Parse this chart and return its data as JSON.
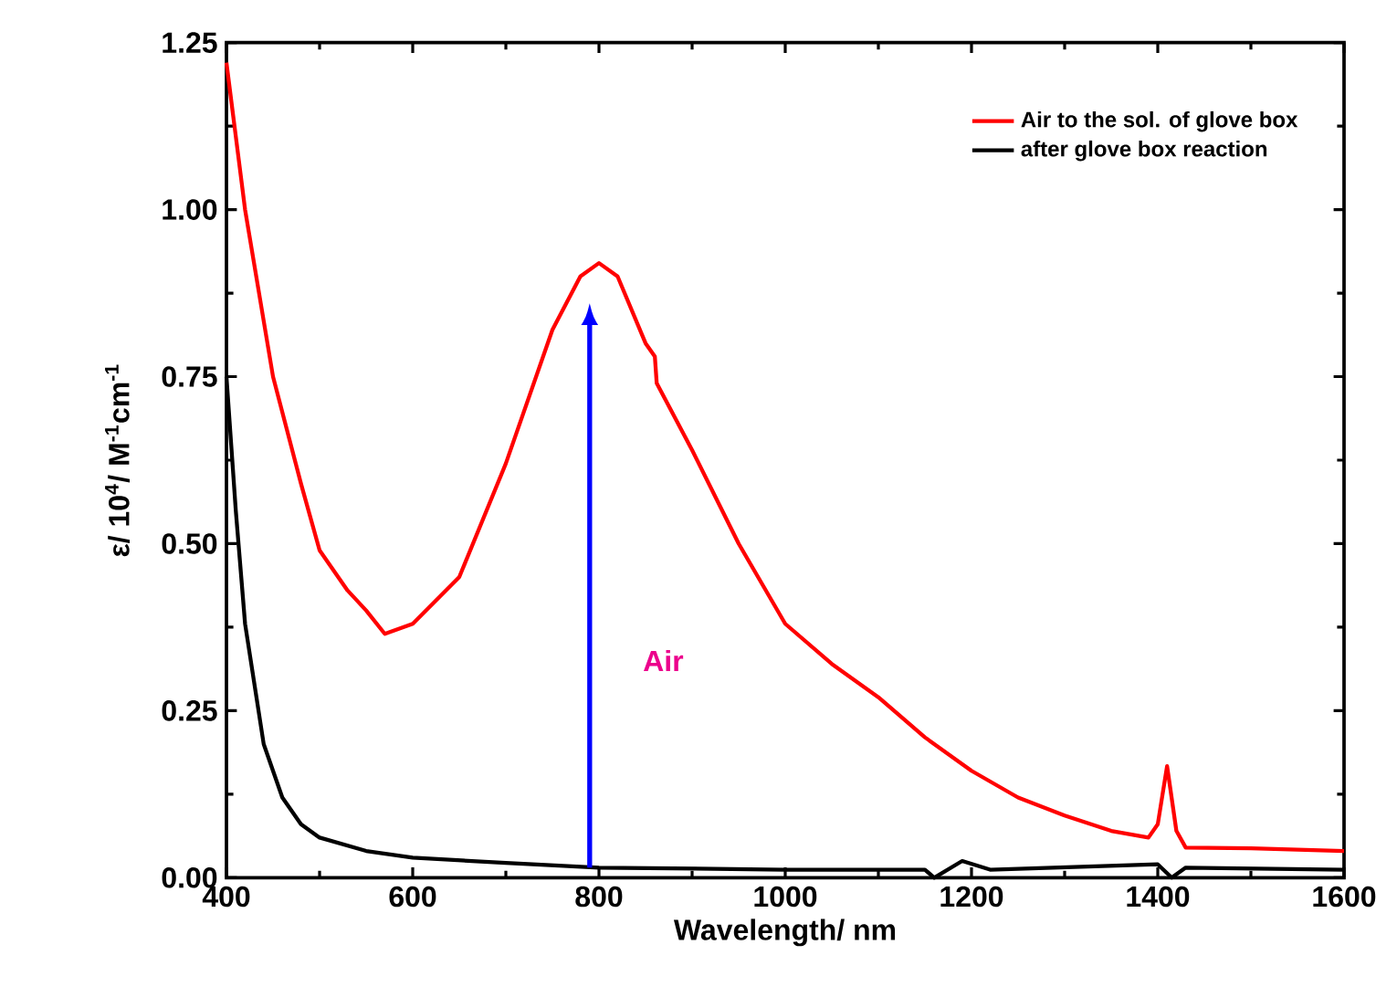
{
  "chart_data": {
    "type": "line",
    "xlabel": "Wavelength/ nm",
    "ylabel": "ε/ 10$^{4}$/ M$^{-1}$cm$^{-1}$",
    "xlim": [
      400,
      1600
    ],
    "ylim": [
      0,
      1.25
    ],
    "xticks": [
      400,
      600,
      800,
      1000,
      1200,
      1400,
      1600
    ],
    "yticks": [
      {
        "value": 0,
        "label": "0.00"
      },
      {
        "value": 0.25,
        "label": "0.25"
      },
      {
        "value": 0.5,
        "label": "0.50"
      },
      {
        "value": 0.75,
        "label": "0.75"
      },
      {
        "value": 1,
        "label": "1.00"
      },
      {
        "value": 1.25,
        "label": "1.25"
      }
    ],
    "legend": "top right",
    "grid": false,
    "marker": "none",
    "line_style": "solid",
    "annotations": [
      "Air"
    ],
    "series": [
      {
        "name": "Air to the sol. of glove box",
        "color": "#ff0000",
        "x": [
          400,
          420,
          450,
          480,
          500,
          530,
          550,
          570,
          600,
          650,
          700,
          750,
          780,
          800,
          820,
          850,
          860,
          862,
          900,
          950,
          1000,
          1050,
          1100,
          1150,
          1200,
          1250,
          1300,
          1350,
          1390,
          1400,
          1410,
          1420,
          1430,
          1500,
          1600
        ],
        "values": [
          1.22,
          1.0,
          0.75,
          0.59,
          0.49,
          0.43,
          0.4,
          0.365,
          0.38,
          0.45,
          0.62,
          0.82,
          0.9,
          0.92,
          0.9,
          0.8,
          0.78,
          0.74,
          0.64,
          0.5,
          0.38,
          0.32,
          0.27,
          0.21,
          0.16,
          0.12,
          0.093,
          0.07,
          0.06,
          0.08,
          0.167,
          0.07,
          0.045,
          0.044,
          0.04
        ]
      },
      {
        "name": "after glove box reaction",
        "color": "#000000",
        "x": [
          400,
          410,
          420,
          440,
          460,
          480,
          500,
          550,
          600,
          700,
          800,
          1000,
          1150,
          1160,
          1190,
          1220,
          1400,
          1415,
          1430,
          1600
        ],
        "values": [
          0.75,
          0.55,
          0.38,
          0.2,
          0.12,
          0.08,
          0.06,
          0.04,
          0.03,
          0.022,
          0.015,
          0.012,
          0.012,
          0.0,
          0.025,
          0.012,
          0.02,
          0.0,
          0.015,
          0.012
        ]
      }
    ]
  }
}
